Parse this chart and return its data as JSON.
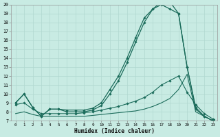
{
  "xlabel": "Humidex (Indice chaleur)",
  "background_color": "#c8ebe3",
  "grid_color": "#b0d8d0",
  "line_color": "#1a6b5a",
  "x_min": 0,
  "x_max": 23,
  "y_min": 7,
  "y_max": 20,
  "s1_x": [
    0,
    1,
    2,
    3,
    4,
    5,
    6,
    7,
    8,
    9,
    10,
    11,
    12,
    13,
    14,
    15,
    16,
    17,
    18,
    19,
    20,
    21,
    22,
    23
  ],
  "s1_y": [
    9.0,
    10.0,
    8.5,
    7.5,
    8.3,
    8.3,
    8.2,
    8.2,
    8.2,
    8.4,
    9.0,
    10.5,
    12.0,
    14.0,
    16.3,
    18.5,
    19.5,
    20.0,
    19.5,
    19.0,
    13.0,
    8.5,
    7.5,
    7.0
  ],
  "s2_x": [
    0,
    1,
    2,
    3,
    4,
    5,
    6,
    7,
    8,
    9,
    10,
    11,
    12,
    13,
    14,
    15,
    16,
    17,
    18,
    19,
    20,
    21,
    22,
    23
  ],
  "s2_y": [
    9.0,
    10.0,
    8.5,
    7.5,
    8.3,
    8.3,
    8.0,
    8.0,
    8.0,
    8.2,
    8.7,
    10.0,
    11.5,
    13.5,
    15.8,
    18.0,
    19.5,
    20.3,
    20.3,
    19.0,
    13.0,
    8.3,
    7.5,
    7.0
  ],
  "s3_x": [
    0,
    1,
    2,
    3,
    4,
    5,
    6,
    7,
    8,
    9,
    10,
    11,
    12,
    13,
    14,
    15,
    16,
    17,
    18,
    19,
    20,
    21,
    22,
    23
  ],
  "s3_y": [
    8.8,
    9.0,
    8.3,
    7.8,
    7.8,
    7.8,
    7.8,
    7.8,
    7.9,
    8.0,
    8.2,
    8.4,
    8.6,
    8.9,
    9.2,
    9.6,
    10.2,
    11.0,
    11.5,
    12.0,
    10.2,
    8.8,
    7.8,
    7.2
  ],
  "s4_x": [
    0,
    1,
    2,
    3,
    4,
    5,
    6,
    7,
    8,
    9,
    10,
    11,
    12,
    13,
    14,
    15,
    16,
    17,
    18,
    19,
    20,
    21,
    22,
    23
  ],
  "s4_y": [
    7.8,
    8.0,
    7.7,
    7.5,
    7.5,
    7.5,
    7.5,
    7.5,
    7.5,
    7.6,
    7.7,
    7.8,
    7.9,
    8.0,
    8.1,
    8.3,
    8.6,
    9.0,
    9.5,
    10.5,
    12.2,
    8.0,
    7.5,
    7.0
  ]
}
